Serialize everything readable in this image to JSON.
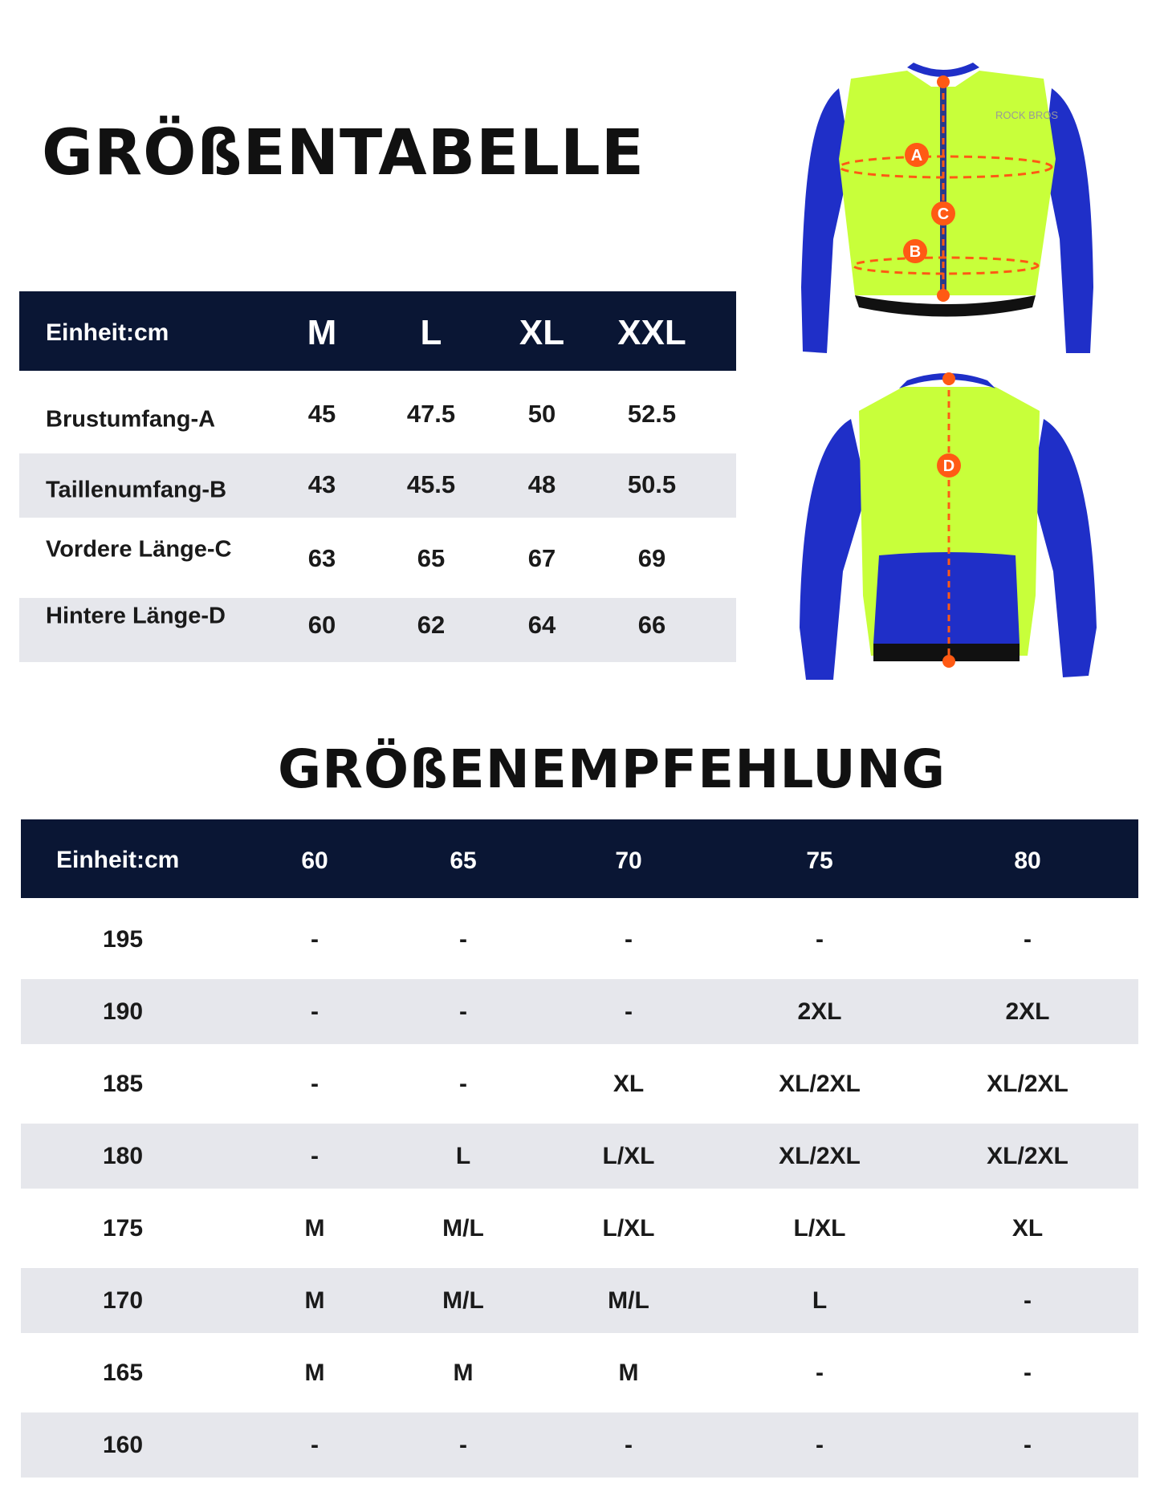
{
  "size_chart": {
    "title": "GRÖßENTABELLE",
    "unit_label": "Einheit:cm",
    "sizes": [
      "M",
      "L",
      "XL",
      "XXL"
    ],
    "rows": [
      {
        "label": "Brustumfang-A",
        "values": [
          "45",
          "47.5",
          "50",
          "52.5"
        ]
      },
      {
        "label": "Taillenumfang-B",
        "values": [
          "43",
          "45.5",
          "48",
          "50.5"
        ]
      },
      {
        "label": "Vordere Länge-C",
        "values": [
          "63",
          "65",
          "67",
          "69"
        ]
      },
      {
        "label": "Hintere Länge-D",
        "values": [
          "60",
          "62",
          "64",
          "66"
        ]
      }
    ]
  },
  "jersey": {
    "brand": "ROCK BROS",
    "markers": [
      "A",
      "C",
      "B",
      "D"
    ],
    "colors": {
      "body": "#c8ff3a",
      "sleeve": "#1f2fc8",
      "marker": "#ff5a14"
    }
  },
  "recommendation": {
    "title": "GRÖßENEMPFEHLUNG",
    "unit_label": "Einheit:cm",
    "weights": [
      "60",
      "65",
      "70",
      "75",
      "80"
    ],
    "rows": [
      {
        "height": "195",
        "values": [
          "-",
          "-",
          "-",
          "-",
          "-"
        ]
      },
      {
        "height": "190",
        "values": [
          "-",
          "-",
          "-",
          "2XL",
          "2XL"
        ]
      },
      {
        "height": "185",
        "values": [
          "-",
          "-",
          "XL",
          "XL/2XL",
          "XL/2XL"
        ]
      },
      {
        "height": "180",
        "values": [
          "-",
          "L",
          "L/XL",
          "XL/2XL",
          "XL/2XL"
        ]
      },
      {
        "height": "175",
        "values": [
          "M",
          "M/L",
          "L/XL",
          "L/XL",
          "XL"
        ]
      },
      {
        "height": "170",
        "values": [
          "M",
          "M/L",
          "M/L",
          "L",
          "-"
        ]
      },
      {
        "height": "165",
        "values": [
          "M",
          "M",
          "M",
          "-",
          "-"
        ]
      },
      {
        "height": "160",
        "values": [
          "-",
          "-",
          "-",
          "-",
          "-"
        ]
      }
    ]
  },
  "colors": {
    "header_bg": "#0a1634",
    "row_shade": "#e6e7ec"
  }
}
